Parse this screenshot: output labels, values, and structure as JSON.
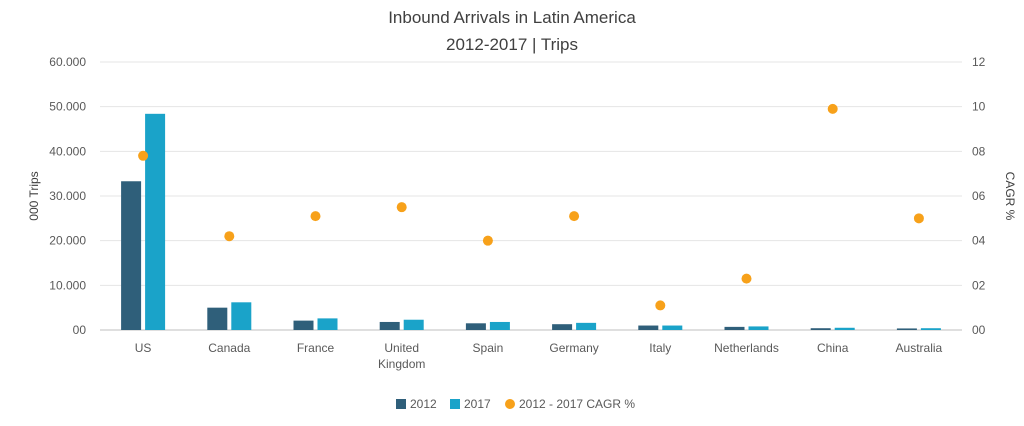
{
  "chart_data": {
    "type": "bar",
    "title": "Inbound Arrivals in Latin America",
    "subtitle": "2012-2017 | Trips",
    "ylabel": "000 Trips",
    "y2label": "CAGR %",
    "ylim": [
      0,
      60000
    ],
    "y2lim": [
      0,
      12
    ],
    "yticks": [
      "60.000",
      "50.000",
      "40.000",
      "30.000",
      "20.000",
      "10.000",
      "00"
    ],
    "y2ticks": [
      "12",
      "10",
      "08",
      "06",
      "04",
      "02",
      "00"
    ],
    "categories": [
      [
        "US"
      ],
      [
        "Canada"
      ],
      [
        "France"
      ],
      [
        "United",
        "Kingdom"
      ],
      [
        "Spain"
      ],
      [
        "Germany"
      ],
      [
        "Italy"
      ],
      [
        "Netherlands"
      ],
      [
        "China"
      ],
      [
        "Australia"
      ]
    ],
    "grid": true,
    "legend_position": "bottom",
    "series": [
      {
        "name": "2012",
        "kind": "bar",
        "axis": "left",
        "color": "#2f5f7a",
        "values": [
          33300,
          5000,
          2100,
          1800,
          1500,
          1300,
          1000,
          700,
          400,
          350
        ]
      },
      {
        "name": "2017",
        "kind": "bar",
        "axis": "left",
        "color": "#1aa3c9",
        "values": [
          48400,
          6200,
          2600,
          2300,
          1800,
          1600,
          1000,
          800,
          500,
          400
        ]
      },
      {
        "name": "2012 - 2017 CAGR %",
        "kind": "scatter",
        "axis": "right",
        "color": "#f7a11a",
        "values": [
          7.8,
          4.2,
          5.1,
          5.5,
          4.0,
          5.1,
          1.1,
          2.3,
          9.9,
          5.0
        ]
      }
    ]
  }
}
